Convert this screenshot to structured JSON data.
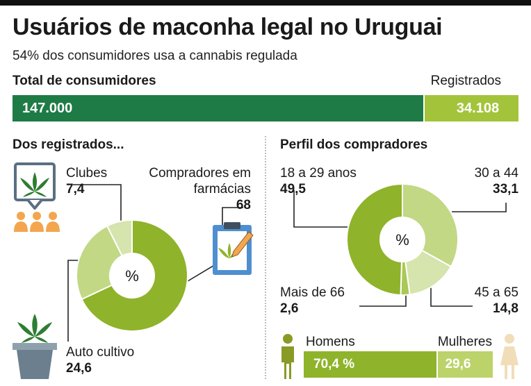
{
  "title": "Usuários de maconha legal no Uruguai",
  "subtitle": "54% dos consumidores usa a cannabis regulada",
  "total_bar": {
    "left_label": "Total de consumidores",
    "right_label": "Registrados",
    "total_text": "147.000",
    "registered_text": "34.108",
    "total_color": "#1e7b45",
    "registered_color": "#a3c43a"
  },
  "left_section": {
    "title": "Dos registrados..."
  },
  "right_section": {
    "title": "Perfil dos compradores"
  },
  "icons": [
    "cannabis-leaf-sign-icon",
    "people-icon",
    "clipboard-leaf-icon",
    "potted-cannabis-icon",
    "man-icon",
    "woman-icon"
  ],
  "chart_data": [
    {
      "type": "pie",
      "center_label": "%",
      "slices": [
        {
          "label": "Compradores em farmácias",
          "value": 68,
          "value_text": "68",
          "color": "#8fb32a"
        },
        {
          "label": "Auto cultivo",
          "value": 24.6,
          "value_text": "24,6",
          "color": "#c2d885"
        },
        {
          "label": "Clubes",
          "value": 7.4,
          "value_text": "7,4",
          "color": "#d6e4ad"
        }
      ]
    },
    {
      "type": "pie",
      "center_label": "%",
      "slices": [
        {
          "label": "30 a 44",
          "value": 33.1,
          "value_text": "33,1",
          "color": "#c2d885"
        },
        {
          "label": "45 a 65",
          "value": 14.8,
          "value_text": "14,8",
          "color": "#d6e4ad"
        },
        {
          "label": "Mais de 66",
          "value": 2.6,
          "value_text": "2,6",
          "color": "#a9c855"
        },
        {
          "label": "18 a 29 anos",
          "value": 49.5,
          "value_text": "49,5",
          "color": "#8fb32a"
        }
      ]
    },
    {
      "type": "bar",
      "categories": [
        "Homens",
        "Mulheres"
      ],
      "values": [
        70.4,
        29.6
      ],
      "value_texts": [
        "70,4 %",
        "29,6"
      ],
      "colors": [
        "#8fb32a",
        "#bcd36a"
      ]
    }
  ]
}
